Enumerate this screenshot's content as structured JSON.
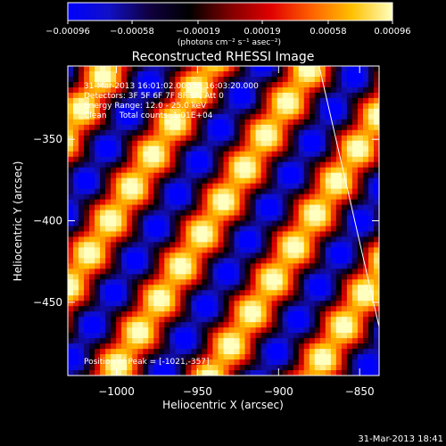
{
  "chart_data": {
    "type": "heatmap",
    "title": "Reconstructed RHESSI Image",
    "xlabel": "Heliocentric X (arcsec)",
    "ylabel": "Heliocentric Y (arcsec)",
    "xlim": [
      -1030,
      -838
    ],
    "ylim": [
      -495,
      -305
    ],
    "x_ticks": [
      {
        "value": -1000,
        "label": "−1000"
      },
      {
        "value": -950,
        "label": "−950"
      },
      {
        "value": -900,
        "label": "−900"
      },
      {
        "value": -850,
        "label": "−850"
      }
    ],
    "y_ticks": [
      {
        "value": -350,
        "label": "−350"
      },
      {
        "value": -400,
        "label": "−400"
      },
      {
        "value": -450,
        "label": "−450"
      }
    ],
    "colorbar": {
      "min": -0.00096,
      "max": 0.00096,
      "units_label": "(photons cm⁻² s⁻¹ asec⁻²)",
      "ticks": [
        {
          "value": -0.00096,
          "label": "−0.00096"
        },
        {
          "value": -0.00058,
          "label": "−0.00058"
        },
        {
          "value": -0.00019,
          "label": "−0.00019"
        },
        {
          "value": 0.00019,
          "label": "0.00019"
        },
        {
          "value": 0.00058,
          "label": "0.00058"
        },
        {
          "value": 0.00096,
          "label": "0.00096"
        }
      ],
      "colors": [
        "#0000ff",
        "#1010c8",
        "#100040",
        "#000000",
        "#800000",
        "#e00000",
        "#ff6000",
        "#ffc000",
        "#ffffc0"
      ]
    },
    "annotations": [
      "31-Mar-2013 16:01:02.000 to 16:03:20.000",
      "Detectors: 3F 5F 6F 7F 8F 9F, Att 0",
      "Energy Range: 12.0 - 25.0 keV",
      "Clean     Total counts: 1.01E+04"
    ],
    "peak_label": "Position of Peak = [-1021,-357]",
    "limb_line": [
      [
        -875,
        -305
      ],
      [
        -838,
        -465
      ]
    ],
    "stripe_pattern": {
      "angle_deg": 57,
      "spatial_period_arcsec": 52
    }
  },
  "timestamp": "31-Mar-2013 18:41"
}
